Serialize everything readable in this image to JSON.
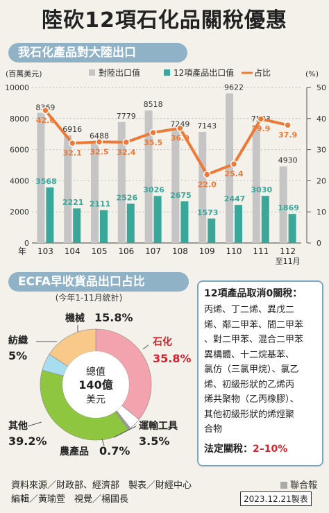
{
  "title": "陸砍12項石化品關稅優惠",
  "section1_title": "我石化產品對大陸出口",
  "section2_title": "ECFA早收貨品出口占比",
  "colors": {
    "gray": "#c5c5c5",
    "teal": "#3aa79a",
    "orange": "#ec7a36",
    "red": "#d2242e"
  },
  "chart_data": [
    {
      "type": "bar",
      "categories": [
        "103",
        "104",
        "105",
        "106",
        "107",
        "108",
        "109",
        "110",
        "111",
        "112"
      ],
      "x_prefix": "年",
      "x_last_sub": "至11月",
      "y_left_unit": "(百萬美元)",
      "y_right_unit": "(%)",
      "ylim": [
        0,
        10000
      ],
      "ylim_right": [
        0,
        50
      ],
      "left_ticks": [
        "0",
        "2000",
        "4000",
        "6000",
        "8000",
        "10000"
      ],
      "right_ticks": [
        "0",
        "10",
        "20",
        "30",
        "40",
        "50"
      ],
      "series": [
        {
          "name": "對陸出口值",
          "values": [
            8369,
            6916,
            6488,
            7779,
            8518,
            7249,
            7143,
            9622,
            7583,
            4930
          ]
        },
        {
          "name": "12項產品出口值",
          "values": [
            3568,
            2221,
            2111,
            2526,
            3026,
            2675,
            1573,
            2447,
            3030,
            1869
          ]
        },
        {
          "name": "占比",
          "values": [
            42.6,
            32.1,
            32.5,
            32.4,
            35.5,
            36.9,
            22.0,
            25.4,
            39.9,
            37.9
          ]
        }
      ],
      "value_labels": {
        "bars1": [
          "8369",
          "6916",
          "6488",
          "7779",
          "8518",
          "7249",
          "7143",
          "9622",
          "7583",
          "4930"
        ],
        "bars2": [
          "3568",
          "2221",
          "2111",
          "2526",
          "3026",
          "2675",
          "1573",
          "2447",
          "3030",
          "1869"
        ],
        "line": [
          "42.6",
          "32.1",
          "32.5",
          "32.4",
          "35.5",
          "36.9",
          "22.0",
          "25.4",
          "39.9",
          "37.9"
        ]
      }
    },
    {
      "type": "pie",
      "subtitle": "(今年1-11月統計)",
      "center_lines": [
        "總值",
        "140億",
        "美元"
      ],
      "slices": [
        {
          "label": "石化",
          "value": 35.8,
          "display": "35.8%",
          "color": "#f2a3ad"
        },
        {
          "label": "運輸工具",
          "value": 3.5,
          "display": "3.5%",
          "color": "#ffffff"
        },
        {
          "label": "農產品",
          "value": 0.7,
          "display": "0.7%",
          "color": "#9c9c9c"
        },
        {
          "label": "其他",
          "value": 39.2,
          "display": "39.2%",
          "color": "#8ec63f"
        },
        {
          "label": "紡織",
          "value": 5,
          "display": "5%",
          "color": "#a8dcef"
        },
        {
          "label": "機械",
          "value": 15.8,
          "display": "15.8%",
          "color": "#f9c98a"
        }
      ]
    }
  ],
  "box": {
    "heading": "12項產品取消0關稅：",
    "lines": [
      "丙烯、丁二烯、異戊二",
      "烯、鄰二甲苯、間二甲苯",
      "、對二甲苯、混合二甲苯",
      "異構體、十二烷基苯、",
      "氯仿（三氯甲烷）、氯乙",
      "烯、初級形狀的乙烯丙",
      "烯共聚物（乙丙橡膠）、",
      "其他初級形狀的烯烴聚",
      "合物"
    ],
    "tariff_label": "法定關稅：",
    "tariff_value": "2–10%"
  },
  "footer": {
    "line1": "資料來源／財政部、經濟部　製表／財經中心",
    "line2": "編輯／黃瑜萱　視覺／楊國長",
    "tag": "聯合報",
    "date": "2023.12.21製表"
  }
}
